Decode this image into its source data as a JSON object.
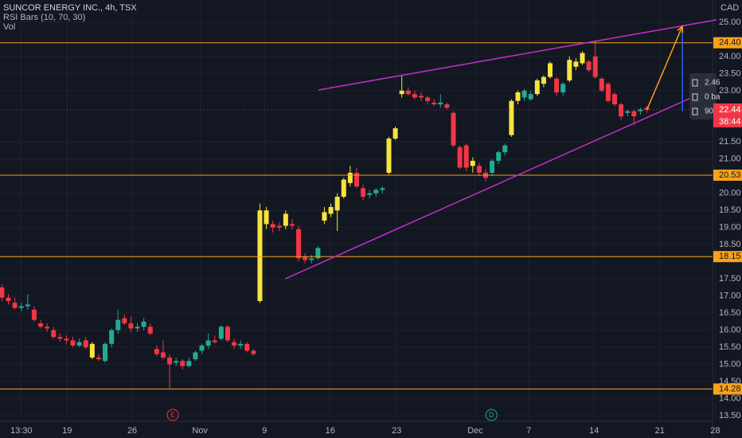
{
  "chart_data": {
    "type": "candlestick",
    "title": "SUNCOR ENERGY INC., 4h, TSX",
    "indicators": [
      "RSI Bars (10, 70, 30)",
      "Vol"
    ],
    "currency": "CAD",
    "grid": true,
    "xlim": [
      -0.3,
      110.8
    ],
    "xticks": [
      {
        "value": 3.0,
        "label": "13:30"
      },
      {
        "value": 10.1,
        "label": "19"
      },
      {
        "value": 20.2,
        "label": "26"
      },
      {
        "value": 30.7,
        "label": "Nov"
      },
      {
        "value": 40.7,
        "label": "9"
      },
      {
        "value": 50.9,
        "label": "16"
      },
      {
        "value": 61.2,
        "label": "23"
      },
      {
        "value": 73.4,
        "label": "Dec"
      },
      {
        "value": 81.7,
        "label": "7"
      },
      {
        "value": 91.8,
        "label": "14"
      },
      {
        "value": 102.0,
        "label": "21"
      },
      {
        "value": 110.6,
        "label": "28"
      }
    ],
    "ylim": [
      13.36,
      25.65
    ],
    "yticks": [
      {
        "value": 13.5,
        "label": "13.50"
      },
      {
        "value": 14,
        "label": "14.00"
      },
      {
        "value": 14.5,
        "label": "14.50"
      },
      {
        "value": 15,
        "label": "15.00"
      },
      {
        "value": 15.5,
        "label": "15.50"
      },
      {
        "value": 16,
        "label": "16.00"
      },
      {
        "value": 16.5,
        "label": "16.50"
      },
      {
        "value": 17,
        "label": "17.00"
      },
      {
        "value": 17.5,
        "label": "17.50"
      },
      {
        "value": 18.5,
        "label": "18.50"
      },
      {
        "value": 19,
        "label": "19.00"
      },
      {
        "value": 19.5,
        "label": "19.50"
      },
      {
        "value": 20,
        "label": "20.00"
      },
      {
        "value": 21,
        "label": "21.00"
      },
      {
        "value": 21.5,
        "label": "21.50"
      },
      {
        "value": 23,
        "label": "23.00"
      },
      {
        "value": 23.5,
        "label": "23.50"
      },
      {
        "value": 24,
        "label": "24.00"
      },
      {
        "value": 25,
        "label": "25.00"
      }
    ],
    "open": [
      17.25,
      16.95,
      16.8,
      16.65,
      16.7,
      16.6,
      16.2,
      16.1,
      16.0,
      15.8,
      15.75,
      15.7,
      15.55,
      15.7,
      15.6,
      15.2,
      15.1,
      15.6,
      16.0,
      16.35,
      16.2,
      16.05,
      16.1,
      16.1,
      15.45,
      15.35,
      15.2,
      15.05,
      15.1,
      14.95,
      15.15,
      15.4,
      15.55,
      15.7,
      15.75,
      16.1,
      15.65,
      15.55,
      15.6,
      15.4,
      16.85,
      19.1,
      19.1,
      19.05,
      19.05,
      19.1,
      18.95,
      18.15,
      18.05,
      18.1,
      19.2,
      19.4,
      19.5,
      19.9,
      20.3,
      20.6,
      20.15,
      19.95,
      20.0,
      20.1,
      20.6,
      21.6,
      22.9,
      23.0,
      22.9,
      22.85,
      22.8,
      22.65,
      22.6,
      22.6,
      22.35,
      21.35,
      21.4,
      20.8,
      20.8,
      20.6,
      20.6,
      20.95,
      21.2,
      21.7,
      22.7,
      22.8,
      22.75,
      22.9,
      23.2,
      23.4,
      23.35,
      22.95,
      23.3,
      23.7,
      23.8,
      23.85,
      24.0,
      23.35,
      23.2,
      22.9,
      22.6,
      22.35,
      22.4,
      22.4,
      22.5
    ],
    "high": [
      17.35,
      17.05,
      16.95,
      16.8,
      17.05,
      16.7,
      16.3,
      16.2,
      16.1,
      15.9,
      15.85,
      15.8,
      15.75,
      15.8,
      15.65,
      15.3,
      15.65,
      16.05,
      16.6,
      16.45,
      16.4,
      16.2,
      16.35,
      16.2,
      15.55,
      15.7,
      15.3,
      15.2,
      15.15,
      15.2,
      15.4,
      15.6,
      15.9,
      15.85,
      16.15,
      16.15,
      15.75,
      15.7,
      15.65,
      15.45,
      19.7,
      19.6,
      19.2,
      19.15,
      19.5,
      19.25,
      19.05,
      18.25,
      18.2,
      18.45,
      19.6,
      19.7,
      20.0,
      20.45,
      20.8,
      20.75,
      20.25,
      20.1,
      20.15,
      20.2,
      21.65,
      21.95,
      23.45,
      23.1,
      23.0,
      22.95,
      22.85,
      22.75,
      22.9,
      22.65,
      22.4,
      21.4,
      21.45,
      21.05,
      20.9,
      20.7,
      21.0,
      21.25,
      21.45,
      22.75,
      23.0,
      23.05,
      23.0,
      23.35,
      23.45,
      23.85,
      23.4,
      23.25,
      24.0,
      23.95,
      24.15,
      23.9,
      24.45,
      23.4,
      23.25,
      22.95,
      22.65,
      22.45,
      22.45,
      22.5,
      22.55
    ],
    "low": [
      16.85,
      16.75,
      16.6,
      16.55,
      16.6,
      16.25,
      16.05,
      15.95,
      15.75,
      15.65,
      15.6,
      15.5,
      15.5,
      15.45,
      15.15,
      15.1,
      15.05,
      15.5,
      15.9,
      16.15,
      15.95,
      15.95,
      16.0,
      15.85,
      15.25,
      15.15,
      14.3,
      14.95,
      14.85,
      14.9,
      15.1,
      15.3,
      15.45,
      15.6,
      15.7,
      15.65,
      15.45,
      15.45,
      15.35,
      15.25,
      16.8,
      18.95,
      18.85,
      18.9,
      18.95,
      18.95,
      18.0,
      17.95,
      17.95,
      18.05,
      19.1,
      19.3,
      18.9,
      19.85,
      20.2,
      20.15,
      19.8,
      19.85,
      19.9,
      20.0,
      20.55,
      21.55,
      22.8,
      22.85,
      22.75,
      22.7,
      22.6,
      22.55,
      22.5,
      22.45,
      21.35,
      20.7,
      20.65,
      20.6,
      20.5,
      20.35,
      20.5,
      20.85,
      21.1,
      21.65,
      22.6,
      22.7,
      22.7,
      22.85,
      23.1,
      23.35,
      22.85,
      22.85,
      23.25,
      23.6,
      23.75,
      23.55,
      23.35,
      22.95,
      22.65,
      22.55,
      22.15,
      22.25,
      22.0,
      22.3,
      22.35
    ],
    "close": [
      16.95,
      16.85,
      16.65,
      16.7,
      16.75,
      16.3,
      16.1,
      16.05,
      15.8,
      15.75,
      15.7,
      15.55,
      15.65,
      15.5,
      15.2,
      15.15,
      15.6,
      16.0,
      16.3,
      16.2,
      16.05,
      16.1,
      16.25,
      15.9,
      15.3,
      15.2,
      15.0,
      15.1,
      14.95,
      15.1,
      15.35,
      15.55,
      15.7,
      15.65,
      16.1,
      15.7,
      15.55,
      15.6,
      15.4,
      15.3,
      19.5,
      19.5,
      19.0,
      19.0,
      19.4,
      19.05,
      18.1,
      18.05,
      18.1,
      18.4,
      19.45,
      19.6,
      19.9,
      20.4,
      20.6,
      20.2,
      19.9,
      20.0,
      20.1,
      20.15,
      21.6,
      21.9,
      23.0,
      22.9,
      22.8,
      22.8,
      22.7,
      22.6,
      22.65,
      22.5,
      21.4,
      20.75,
      20.75,
      20.95,
      20.6,
      20.45,
      20.95,
      21.2,
      21.4,
      22.7,
      22.95,
      23.0,
      22.9,
      23.3,
      23.4,
      23.8,
      22.95,
      23.2,
      23.9,
      23.85,
      24.1,
      23.6,
      23.4,
      23.0,
      22.7,
      22.6,
      22.25,
      22.4,
      22.25,
      22.45,
      22.44
    ],
    "colors": [
      "#f23645",
      "#f23645",
      "#f23645",
      "#22ab94",
      "#22ab94",
      "#f23645",
      "#f23645",
      "#f23645",
      "#f23645",
      "#f23645",
      "#f23645",
      "#f23645",
      "#22ab94",
      "#f23645",
      "#f7e43c",
      "#f23645",
      "#22ab94",
      "#22ab94",
      "#22ab94",
      "#f23645",
      "#f23645",
      "#22ab94",
      "#22ab94",
      "#f23645",
      "#f23645",
      "#f23645",
      "#f23645",
      "#22ab94",
      "#f23645",
      "#22ab94",
      "#22ab94",
      "#22ab94",
      "#22ab94",
      "#f23645",
      "#22ab94",
      "#f23645",
      "#f23645",
      "#22ab94",
      "#f23645",
      "#f23645",
      "#f7e43c",
      "#f7e43c",
      "#f23645",
      "#f23645",
      "#f7e43c",
      "#f23645",
      "#f23645",
      "#f23645",
      "#22ab94",
      "#22ab94",
      "#f7e43c",
      "#f7e43c",
      "#f7e43c",
      "#f7e43c",
      "#f7e43c",
      "#f23645",
      "#f23645",
      "#22ab94",
      "#22ab94",
      "#22ab94",
      "#f7e43c",
      "#f7e43c",
      "#f7e43c",
      "#f23645",
      "#f23645",
      "#f23645",
      "#f23645",
      "#f23645",
      "#22ab94",
      "#f23645",
      "#f23645",
      "#f23645",
      "#f23645",
      "#f7e43c",
      "#f23645",
      "#f23645",
      "#22ab94",
      "#22ab94",
      "#22ab94",
      "#f7e43c",
      "#f7e43c",
      "#22ab94",
      "#22ab94",
      "#f7e43c",
      "#f7e43c",
      "#f7e43c",
      "#f23645",
      "#22ab94",
      "#f7e43c",
      "#f7e43c",
      "#f7e43c",
      "#f23645",
      "#f23645",
      "#f23645",
      "#f23645",
      "#f23645",
      "#f23645",
      "#22ab94",
      "#f23645",
      "#22ab94",
      "#f23645"
    ],
    "levels": [
      {
        "value": 24.4,
        "label": "24.40"
      },
      {
        "value": 20.53,
        "label": "20.53"
      },
      {
        "value": 18.15,
        "label": "18.15"
      },
      {
        "value": 14.28,
        "label": "14.28"
      }
    ],
    "level_color": "#f7a21b",
    "last_price": {
      "value": 22.44,
      "label": "22.44",
      "color": "#f23645"
    },
    "countdown": "38:44",
    "trendlines": [
      {
        "points": [
          [
            49.1,
            23.02
          ],
          [
            110.8,
            25.07
          ]
        ],
        "color": "#c02fc8"
      },
      {
        "points": [
          [
            43.9,
            17.5
          ],
          [
            109.6,
            23.02
          ]
        ],
        "color": "#c02fc8"
      }
    ],
    "arrow": {
      "points": [
        [
          100,
          22.44
        ],
        [
          105.5,
          24.88
        ]
      ],
      "color": "#f7a21b"
    },
    "measure": {
      "x": 105.5,
      "from": 22.4,
      "to": 24.88,
      "color": "#2962ff",
      "labels": [
        "2.46",
        "0 ba",
        "90°"
      ]
    },
    "events": [
      {
        "x": 26.5,
        "label": "E",
        "color": "#f23645"
      },
      {
        "x": 75.9,
        "label": "D",
        "color": "#22ab94"
      }
    ]
  }
}
